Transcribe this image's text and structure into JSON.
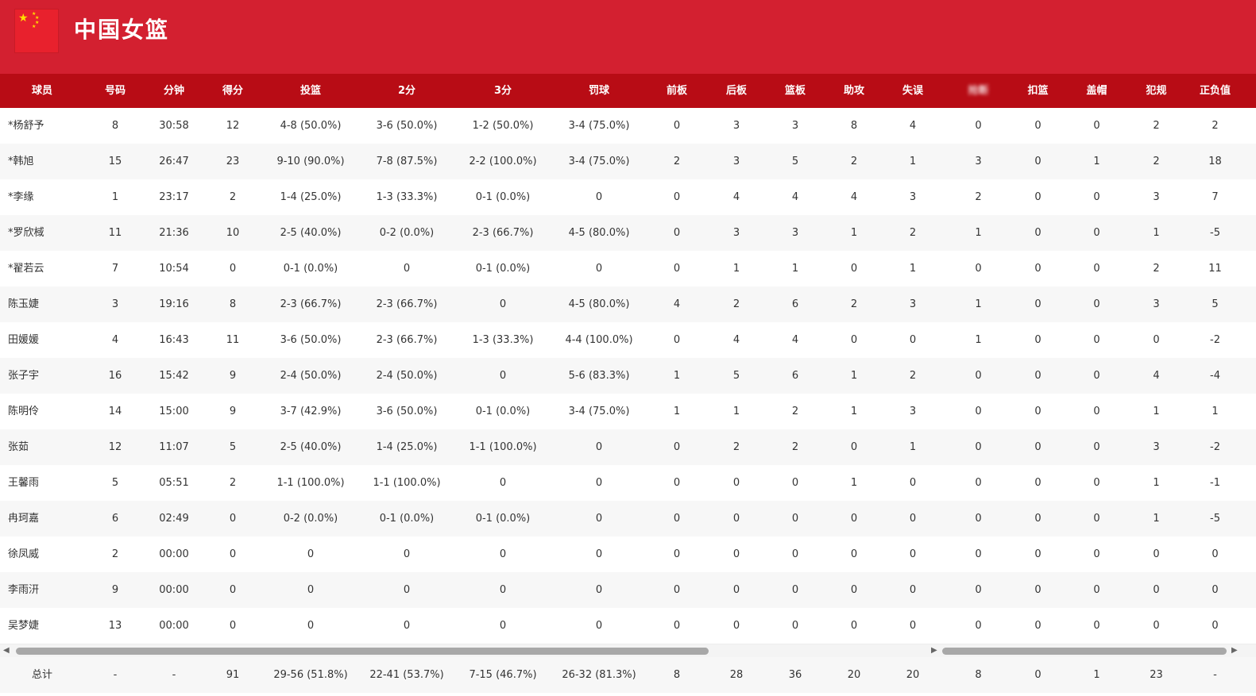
{
  "team": {
    "name": "中国女篮",
    "flag_icon": "china-flag-icon",
    "header_color": "#d32030",
    "table_header_color": "#b80c15"
  },
  "columns_left": [
    "球员",
    "号码",
    "分钟",
    "得分",
    "投篮",
    "2分",
    "3分",
    "罚球",
    "前板",
    "后板",
    "篮板",
    "助攻",
    "失误"
  ],
  "columns_right": [
    "抢断",
    "扣篮",
    "盖帽",
    "犯规",
    "正负值"
  ],
  "players": [
    {
      "name": "*杨舒予",
      "num": "8",
      "min": "30:58",
      "pts": "12",
      "fg": "4-8 (50.0%)",
      "p2": "3-6 (50.0%)",
      "p3": "1-2 (50.0%)",
      "ft": "3-4 (75.0%)",
      "oreb": "0",
      "dreb": "3",
      "reb": "3",
      "ast": "8",
      "tov": "4",
      "stl": "0",
      "dnk": "0",
      "blk": "0",
      "pf": "2",
      "pm": "2"
    },
    {
      "name": "*韩旭",
      "num": "15",
      "min": "26:47",
      "pts": "23",
      "fg": "9-10 (90.0%)",
      "p2": "7-8 (87.5%)",
      "p3": "2-2 (100.0%)",
      "ft": "3-4 (75.0%)",
      "oreb": "2",
      "dreb": "3",
      "reb": "5",
      "ast": "2",
      "tov": "1",
      "stl": "3",
      "dnk": "0",
      "blk": "1",
      "pf": "2",
      "pm": "18"
    },
    {
      "name": "*李缘",
      "num": "1",
      "min": "23:17",
      "pts": "2",
      "fg": "1-4 (25.0%)",
      "p2": "1-3 (33.3%)",
      "p3": "0-1 (0.0%)",
      "ft": "0",
      "oreb": "0",
      "dreb": "4",
      "reb": "4",
      "ast": "4",
      "tov": "3",
      "stl": "2",
      "dnk": "0",
      "blk": "0",
      "pf": "3",
      "pm": "7"
    },
    {
      "name": "*罗欣棫",
      "num": "11",
      "min": "21:36",
      "pts": "10",
      "fg": "2-5 (40.0%)",
      "p2": "0-2 (0.0%)",
      "p3": "2-3 (66.7%)",
      "ft": "4-5 (80.0%)",
      "oreb": "0",
      "dreb": "3",
      "reb": "3",
      "ast": "1",
      "tov": "2",
      "stl": "1",
      "dnk": "0",
      "blk": "0",
      "pf": "1",
      "pm": "-5"
    },
    {
      "name": "*翟若云",
      "num": "7",
      "min": "10:54",
      "pts": "0",
      "fg": "0-1 (0.0%)",
      "p2": "0",
      "p3": "0-1 (0.0%)",
      "ft": "0",
      "oreb": "0",
      "dreb": "1",
      "reb": "1",
      "ast": "0",
      "tov": "1",
      "stl": "0",
      "dnk": "0",
      "blk": "0",
      "pf": "2",
      "pm": "11"
    },
    {
      "name": "陈玉婕",
      "num": "3",
      "min": "19:16",
      "pts": "8",
      "fg": "2-3 (66.7%)",
      "p2": "2-3 (66.7%)",
      "p3": "0",
      "ft": "4-5 (80.0%)",
      "oreb": "4",
      "dreb": "2",
      "reb": "6",
      "ast": "2",
      "tov": "3",
      "stl": "1",
      "dnk": "0",
      "blk": "0",
      "pf": "3",
      "pm": "5"
    },
    {
      "name": "田媛媛",
      "num": "4",
      "min": "16:43",
      "pts": "11",
      "fg": "3-6 (50.0%)",
      "p2": "2-3 (66.7%)",
      "p3": "1-3 (33.3%)",
      "ft": "4-4 (100.0%)",
      "oreb": "0",
      "dreb": "4",
      "reb": "4",
      "ast": "0",
      "tov": "0",
      "stl": "1",
      "dnk": "0",
      "blk": "0",
      "pf": "0",
      "pm": "-2"
    },
    {
      "name": "张子宇",
      "num": "16",
      "min": "15:42",
      "pts": "9",
      "fg": "2-4 (50.0%)",
      "p2": "2-4 (50.0%)",
      "p3": "0",
      "ft": "5-6 (83.3%)",
      "oreb": "1",
      "dreb": "5",
      "reb": "6",
      "ast": "1",
      "tov": "2",
      "stl": "0",
      "dnk": "0",
      "blk": "0",
      "pf": "4",
      "pm": "-4"
    },
    {
      "name": "陈明伶",
      "num": "14",
      "min": "15:00",
      "pts": "9",
      "fg": "3-7 (42.9%)",
      "p2": "3-6 (50.0%)",
      "p3": "0-1 (0.0%)",
      "ft": "3-4 (75.0%)",
      "oreb": "1",
      "dreb": "1",
      "reb": "2",
      "ast": "1",
      "tov": "3",
      "stl": "0",
      "dnk": "0",
      "blk": "0",
      "pf": "1",
      "pm": "1"
    },
    {
      "name": "张茹",
      "num": "12",
      "min": "11:07",
      "pts": "5",
      "fg": "2-5 (40.0%)",
      "p2": "1-4 (25.0%)",
      "p3": "1-1 (100.0%)",
      "ft": "0",
      "oreb": "0",
      "dreb": "2",
      "reb": "2",
      "ast": "0",
      "tov": "1",
      "stl": "0",
      "dnk": "0",
      "blk": "0",
      "pf": "3",
      "pm": "-2"
    },
    {
      "name": "王馨雨",
      "num": "5",
      "min": "05:51",
      "pts": "2",
      "fg": "1-1 (100.0%)",
      "p2": "1-1 (100.0%)",
      "p3": "0",
      "ft": "0",
      "oreb": "0",
      "dreb": "0",
      "reb": "0",
      "ast": "1",
      "tov": "0",
      "stl": "0",
      "dnk": "0",
      "blk": "0",
      "pf": "1",
      "pm": "-1"
    },
    {
      "name": "冉珂嘉",
      "num": "6",
      "min": "02:49",
      "pts": "0",
      "fg": "0-2 (0.0%)",
      "p2": "0-1 (0.0%)",
      "p3": "0-1 (0.0%)",
      "ft": "0",
      "oreb": "0",
      "dreb": "0",
      "reb": "0",
      "ast": "0",
      "tov": "0",
      "stl": "0",
      "dnk": "0",
      "blk": "0",
      "pf": "1",
      "pm": "-5"
    },
    {
      "name": "徐凤威",
      "num": "2",
      "min": "00:00",
      "pts": "0",
      "fg": "0",
      "p2": "0",
      "p3": "0",
      "ft": "0",
      "oreb": "0",
      "dreb": "0",
      "reb": "0",
      "ast": "0",
      "tov": "0",
      "stl": "0",
      "dnk": "0",
      "blk": "0",
      "pf": "0",
      "pm": "0"
    },
    {
      "name": "李雨汧",
      "num": "9",
      "min": "00:00",
      "pts": "0",
      "fg": "0",
      "p2": "0",
      "p3": "0",
      "ft": "0",
      "oreb": "0",
      "dreb": "0",
      "reb": "0",
      "ast": "0",
      "tov": "0",
      "stl": "0",
      "dnk": "0",
      "blk": "0",
      "pf": "0",
      "pm": "0"
    },
    {
      "name": "吴梦婕",
      "num": "13",
      "min": "00:00",
      "pts": "0",
      "fg": "0",
      "p2": "0",
      "p3": "0",
      "ft": "0",
      "oreb": "0",
      "dreb": "0",
      "reb": "0",
      "ast": "0",
      "tov": "0",
      "stl": "0",
      "dnk": "0",
      "blk": "0",
      "pf": "0",
      "pm": "0"
    }
  ],
  "totals": {
    "name": "总计",
    "num": "-",
    "min": "-",
    "pts": "91",
    "fg": "29-56 (51.8%)",
    "p2": "22-41 (53.7%)",
    "p3": "7-15 (46.7%)",
    "ft": "26-32 (81.3%)",
    "oreb": "8",
    "dreb": "28",
    "reb": "36",
    "ast": "20",
    "tov": "20",
    "stl": "8",
    "dnk": "0",
    "blk": "1",
    "pf": "23",
    "pm": "-"
  },
  "scroll": {
    "left_arrow": "◀",
    "right_arrow": "▶"
  }
}
